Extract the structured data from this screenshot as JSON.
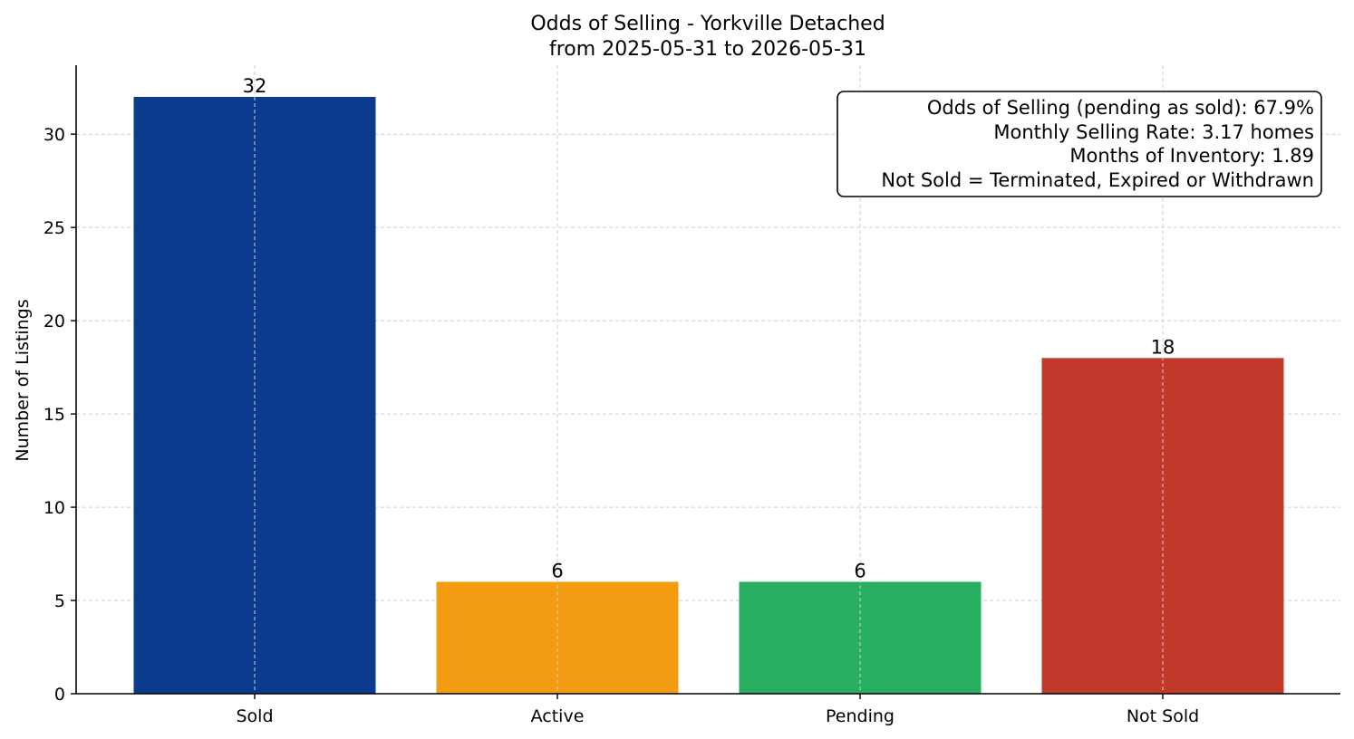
{
  "chart_data": {
    "type": "bar",
    "title_line1": "Odds of Selling - Yorkville Detached",
    "title_line2": "from 2025-05-31 to 2026-05-31",
    "xlabel": "",
    "ylabel": "Number of Listings",
    "categories": [
      "Sold",
      "Active",
      "Pending",
      "Not Sold"
    ],
    "values": [
      32,
      6,
      6,
      18
    ],
    "colors": [
      "#0b3b8f",
      "#f39c12",
      "#27ae60",
      "#c0392b"
    ],
    "ylim": [
      0,
      33.7
    ],
    "yticks": [
      0,
      5,
      10,
      15,
      20,
      25,
      30
    ],
    "grid": true,
    "info_box": {
      "placement": "top-right",
      "lines": [
        "Odds of Selling (pending as sold): 67.9%",
        "Monthly Selling Rate: 3.17 homes",
        "Months of Inventory: 1.89",
        "Not Sold = Terminated, Expired or Withdrawn"
      ]
    }
  }
}
